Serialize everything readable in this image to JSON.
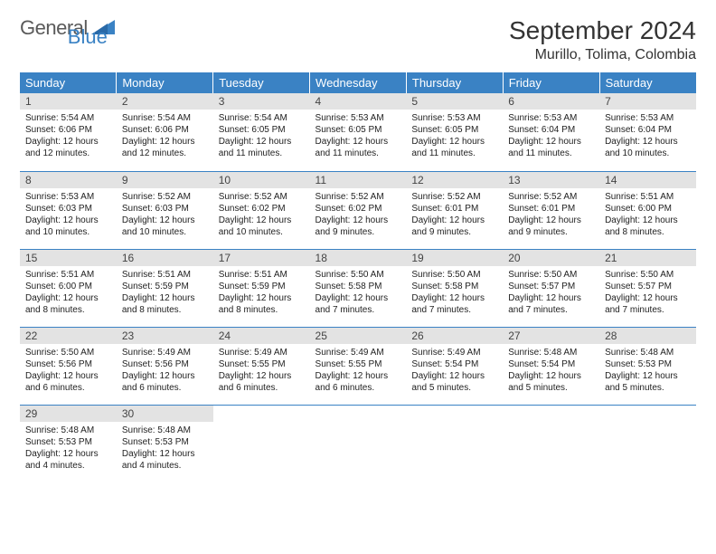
{
  "logo": {
    "general": "General",
    "blue": "Blue"
  },
  "header": {
    "title": "September 2024",
    "location": "Murillo, Tolima, Colombia"
  },
  "colors": {
    "header_bg": "#3a82c4",
    "header_text": "#ffffff",
    "daynum_bg": "#e3e3e3",
    "row_border": "#3a82c4",
    "logo_gray": "#5a5a5a",
    "logo_blue": "#3a82c4"
  },
  "weekdays": [
    "Sunday",
    "Monday",
    "Tuesday",
    "Wednesday",
    "Thursday",
    "Friday",
    "Saturday"
  ],
  "days": [
    {
      "n": 1,
      "sr": "5:54 AM",
      "ss": "6:06 PM",
      "dl": "12 hours and 12 minutes."
    },
    {
      "n": 2,
      "sr": "5:54 AM",
      "ss": "6:06 PM",
      "dl": "12 hours and 12 minutes."
    },
    {
      "n": 3,
      "sr": "5:54 AM",
      "ss": "6:05 PM",
      "dl": "12 hours and 11 minutes."
    },
    {
      "n": 4,
      "sr": "5:53 AM",
      "ss": "6:05 PM",
      "dl": "12 hours and 11 minutes."
    },
    {
      "n": 5,
      "sr": "5:53 AM",
      "ss": "6:05 PM",
      "dl": "12 hours and 11 minutes."
    },
    {
      "n": 6,
      "sr": "5:53 AM",
      "ss": "6:04 PM",
      "dl": "12 hours and 11 minutes."
    },
    {
      "n": 7,
      "sr": "5:53 AM",
      "ss": "6:04 PM",
      "dl": "12 hours and 10 minutes."
    },
    {
      "n": 8,
      "sr": "5:53 AM",
      "ss": "6:03 PM",
      "dl": "12 hours and 10 minutes."
    },
    {
      "n": 9,
      "sr": "5:52 AM",
      "ss": "6:03 PM",
      "dl": "12 hours and 10 minutes."
    },
    {
      "n": 10,
      "sr": "5:52 AM",
      "ss": "6:02 PM",
      "dl": "12 hours and 10 minutes."
    },
    {
      "n": 11,
      "sr": "5:52 AM",
      "ss": "6:02 PM",
      "dl": "12 hours and 9 minutes."
    },
    {
      "n": 12,
      "sr": "5:52 AM",
      "ss": "6:01 PM",
      "dl": "12 hours and 9 minutes."
    },
    {
      "n": 13,
      "sr": "5:52 AM",
      "ss": "6:01 PM",
      "dl": "12 hours and 9 minutes."
    },
    {
      "n": 14,
      "sr": "5:51 AM",
      "ss": "6:00 PM",
      "dl": "12 hours and 8 minutes."
    },
    {
      "n": 15,
      "sr": "5:51 AM",
      "ss": "6:00 PM",
      "dl": "12 hours and 8 minutes."
    },
    {
      "n": 16,
      "sr": "5:51 AM",
      "ss": "5:59 PM",
      "dl": "12 hours and 8 minutes."
    },
    {
      "n": 17,
      "sr": "5:51 AM",
      "ss": "5:59 PM",
      "dl": "12 hours and 8 minutes."
    },
    {
      "n": 18,
      "sr": "5:50 AM",
      "ss": "5:58 PM",
      "dl": "12 hours and 7 minutes."
    },
    {
      "n": 19,
      "sr": "5:50 AM",
      "ss": "5:58 PM",
      "dl": "12 hours and 7 minutes."
    },
    {
      "n": 20,
      "sr": "5:50 AM",
      "ss": "5:57 PM",
      "dl": "12 hours and 7 minutes."
    },
    {
      "n": 21,
      "sr": "5:50 AM",
      "ss": "5:57 PM",
      "dl": "12 hours and 7 minutes."
    },
    {
      "n": 22,
      "sr": "5:50 AM",
      "ss": "5:56 PM",
      "dl": "12 hours and 6 minutes."
    },
    {
      "n": 23,
      "sr": "5:49 AM",
      "ss": "5:56 PM",
      "dl": "12 hours and 6 minutes."
    },
    {
      "n": 24,
      "sr": "5:49 AM",
      "ss": "5:55 PM",
      "dl": "12 hours and 6 minutes."
    },
    {
      "n": 25,
      "sr": "5:49 AM",
      "ss": "5:55 PM",
      "dl": "12 hours and 6 minutes."
    },
    {
      "n": 26,
      "sr": "5:49 AM",
      "ss": "5:54 PM",
      "dl": "12 hours and 5 minutes."
    },
    {
      "n": 27,
      "sr": "5:48 AM",
      "ss": "5:54 PM",
      "dl": "12 hours and 5 minutes."
    },
    {
      "n": 28,
      "sr": "5:48 AM",
      "ss": "5:53 PM",
      "dl": "12 hours and 5 minutes."
    },
    {
      "n": 29,
      "sr": "5:48 AM",
      "ss": "5:53 PM",
      "dl": "12 hours and 4 minutes."
    },
    {
      "n": 30,
      "sr": "5:48 AM",
      "ss": "5:53 PM",
      "dl": "12 hours and 4 minutes."
    }
  ],
  "labels": {
    "sunrise": "Sunrise:",
    "sunset": "Sunset:",
    "daylight": "Daylight:"
  },
  "start_weekday": 0,
  "layout": {
    "columns": 7,
    "rows": 5
  }
}
